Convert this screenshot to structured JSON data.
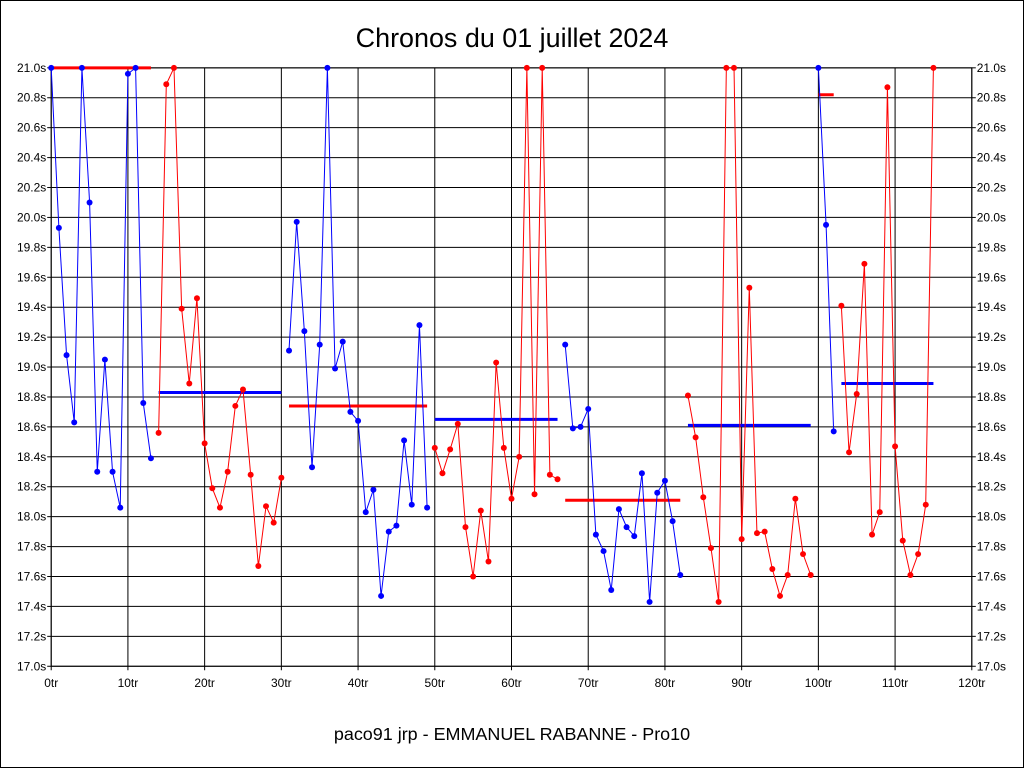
{
  "chart_data": {
    "type": "line",
    "title": "Chronos du 01 juillet 2024",
    "footer": "paco91 jrp - EMMANUEL RABANNE - Pro10",
    "xlabel": "",
    "ylabel": "",
    "xlim": [
      0,
      120
    ],
    "ylim": [
      17.0,
      21.0
    ],
    "x_ticks": [
      {
        "value": 0,
        "label": "0tr"
      },
      {
        "value": 10,
        "label": "10tr"
      },
      {
        "value": 20,
        "label": "20tr"
      },
      {
        "value": 30,
        "label": "30tr"
      },
      {
        "value": 40,
        "label": "40tr"
      },
      {
        "value": 50,
        "label": "50tr"
      },
      {
        "value": 60,
        "label": "60tr"
      },
      {
        "value": 70,
        "label": "70tr"
      },
      {
        "value": 80,
        "label": "80tr"
      },
      {
        "value": 90,
        "label": "90tr"
      },
      {
        "value": 100,
        "label": "100tr"
      },
      {
        "value": 110,
        "label": "110tr"
      },
      {
        "value": 120,
        "label": "120tr"
      }
    ],
    "y_ticks": [
      {
        "value": 21.0,
        "label": "21.0s"
      },
      {
        "value": 20.8,
        "label": "20.8s"
      },
      {
        "value": 20.6,
        "label": "20.6s"
      },
      {
        "value": 20.4,
        "label": "20.4s"
      },
      {
        "value": 20.2,
        "label": "20.2s"
      },
      {
        "value": 20.0,
        "label": "20.0s"
      },
      {
        "value": 19.8,
        "label": "19.8s"
      },
      {
        "value": 19.6,
        "label": "19.6s"
      },
      {
        "value": 19.4,
        "label": "19.4s"
      },
      {
        "value": 19.2,
        "label": "19.2s"
      },
      {
        "value": 19.0,
        "label": "19.0s"
      },
      {
        "value": 18.8,
        "label": "18.8s"
      },
      {
        "value": 18.6,
        "label": "18.6s"
      },
      {
        "value": 18.4,
        "label": "18.4s"
      },
      {
        "value": 18.2,
        "label": "18.2s"
      },
      {
        "value": 18.0,
        "label": "18.0s"
      },
      {
        "value": 17.8,
        "label": "17.8s"
      },
      {
        "value": 17.6,
        "label": "17.6s"
      },
      {
        "value": 17.4,
        "label": "17.4s"
      },
      {
        "value": 17.2,
        "label": "17.2s"
      },
      {
        "value": 17.0,
        "label": "17.0s"
      }
    ],
    "grid": true,
    "series": [
      {
        "color": "#0000ff",
        "points": [
          [
            0,
            21.0
          ],
          [
            1,
            19.93
          ],
          [
            2,
            19.08
          ],
          [
            3,
            18.63
          ],
          [
            4,
            21.0
          ],
          [
            5,
            20.1
          ],
          [
            6,
            18.3
          ],
          [
            7,
            19.05
          ],
          [
            8,
            18.3
          ],
          [
            9,
            18.06
          ],
          [
            10,
            20.96
          ],
          [
            11,
            21.0
          ],
          [
            12,
            18.76
          ],
          [
            13,
            18.39
          ]
        ]
      },
      {
        "color": "#ff0000",
        "points": [
          [
            14,
            18.56
          ],
          [
            15,
            20.89
          ],
          [
            16,
            21.0
          ],
          [
            17,
            19.39
          ],
          [
            18,
            18.89
          ],
          [
            19,
            19.46
          ],
          [
            20,
            18.49
          ],
          [
            21,
            18.19
          ],
          [
            22,
            18.06
          ],
          [
            23,
            18.3
          ],
          [
            24,
            18.74
          ],
          [
            25,
            18.85
          ],
          [
            26,
            18.28
          ],
          [
            27,
            17.67
          ],
          [
            28,
            18.07
          ],
          [
            29,
            17.96
          ],
          [
            30,
            18.26
          ]
        ]
      },
      {
        "color": "#0000ff",
        "points": [
          [
            31,
            19.11
          ],
          [
            32,
            19.97
          ],
          [
            33,
            19.24
          ],
          [
            34,
            18.33
          ],
          [
            35,
            19.15
          ],
          [
            36,
            21.0
          ],
          [
            37,
            18.99
          ],
          [
            38,
            19.17
          ],
          [
            39,
            18.7
          ],
          [
            40,
            18.64
          ],
          [
            41,
            18.03
          ],
          [
            42,
            18.18
          ],
          [
            43,
            17.47
          ],
          [
            44,
            17.9
          ],
          [
            45,
            17.94
          ],
          [
            46,
            18.51
          ],
          [
            47,
            18.08
          ],
          [
            48,
            19.28
          ],
          [
            49,
            18.06
          ]
        ]
      },
      {
        "color": "#ff0000",
        "points": [
          [
            50,
            18.46
          ],
          [
            51,
            18.29
          ],
          [
            52,
            18.45
          ],
          [
            53,
            18.62
          ],
          [
            54,
            17.93
          ],
          [
            55,
            17.6
          ],
          [
            56,
            18.04
          ],
          [
            57,
            17.7
          ],
          [
            58,
            19.03
          ],
          [
            59,
            18.46
          ],
          [
            60,
            18.12
          ],
          [
            61,
            18.4
          ],
          [
            62,
            21.0
          ],
          [
            63,
            18.15
          ],
          [
            64,
            21.0
          ],
          [
            65,
            18.28
          ],
          [
            66,
            18.25
          ]
        ]
      },
      {
        "color": "#0000ff",
        "points": [
          [
            67,
            19.15
          ],
          [
            68,
            18.59
          ],
          [
            69,
            18.6
          ],
          [
            70,
            18.72
          ],
          [
            71,
            17.88
          ],
          [
            72,
            17.77
          ],
          [
            73,
            17.51
          ],
          [
            74,
            18.05
          ],
          [
            75,
            17.93
          ],
          [
            76,
            17.87
          ],
          [
            77,
            18.29
          ],
          [
            78,
            17.43
          ],
          [
            79,
            18.16
          ],
          [
            80,
            18.24
          ],
          [
            81,
            17.97
          ],
          [
            82,
            17.61
          ]
        ]
      },
      {
        "color": "#ff0000",
        "points": [
          [
            83,
            18.81
          ],
          [
            84,
            18.53
          ],
          [
            85,
            18.13
          ],
          [
            86,
            17.79
          ],
          [
            87,
            17.43
          ],
          [
            88,
            21.0
          ],
          [
            89,
            21.0
          ],
          [
            90,
            17.85
          ],
          [
            91,
            19.53
          ],
          [
            92,
            17.89
          ],
          [
            93,
            17.9
          ],
          [
            94,
            17.65
          ],
          [
            95,
            17.47
          ],
          [
            96,
            17.61
          ],
          [
            97,
            18.12
          ],
          [
            98,
            17.75
          ],
          [
            99,
            17.61
          ]
        ]
      },
      {
        "color": "#0000ff",
        "points": [
          [
            100,
            21.0
          ],
          [
            101,
            19.95
          ],
          [
            102,
            18.57
          ]
        ]
      },
      {
        "color": "#ff0000",
        "points": [
          [
            103,
            19.41
          ],
          [
            104,
            18.43
          ],
          [
            105,
            18.82
          ],
          [
            106,
            19.69
          ],
          [
            107,
            17.88
          ],
          [
            108,
            18.03
          ],
          [
            109,
            20.87
          ],
          [
            110,
            18.47
          ],
          [
            111,
            17.84
          ],
          [
            112,
            17.61
          ],
          [
            113,
            17.75
          ],
          [
            114,
            18.08
          ],
          [
            115,
            21.0
          ]
        ]
      }
    ],
    "averages": [
      {
        "color": "#ff0000",
        "x": [
          0,
          13
        ],
        "y": 21.0
      },
      {
        "color": "#0000ff",
        "x": [
          14,
          30
        ],
        "y": 18.83
      },
      {
        "color": "#ff0000",
        "x": [
          31,
          49
        ],
        "y": 18.74
      },
      {
        "color": "#0000ff",
        "x": [
          50,
          66
        ],
        "y": 18.65
      },
      {
        "color": "#ff0000",
        "x": [
          67,
          82
        ],
        "y": 18.11
      },
      {
        "color": "#0000ff",
        "x": [
          83,
          99
        ],
        "y": 18.61
      },
      {
        "color": "#ff0000",
        "x": [
          100,
          102
        ],
        "y": 20.82
      },
      {
        "color": "#0000ff",
        "x": [
          103,
          115
        ],
        "y": 18.89
      }
    ]
  }
}
